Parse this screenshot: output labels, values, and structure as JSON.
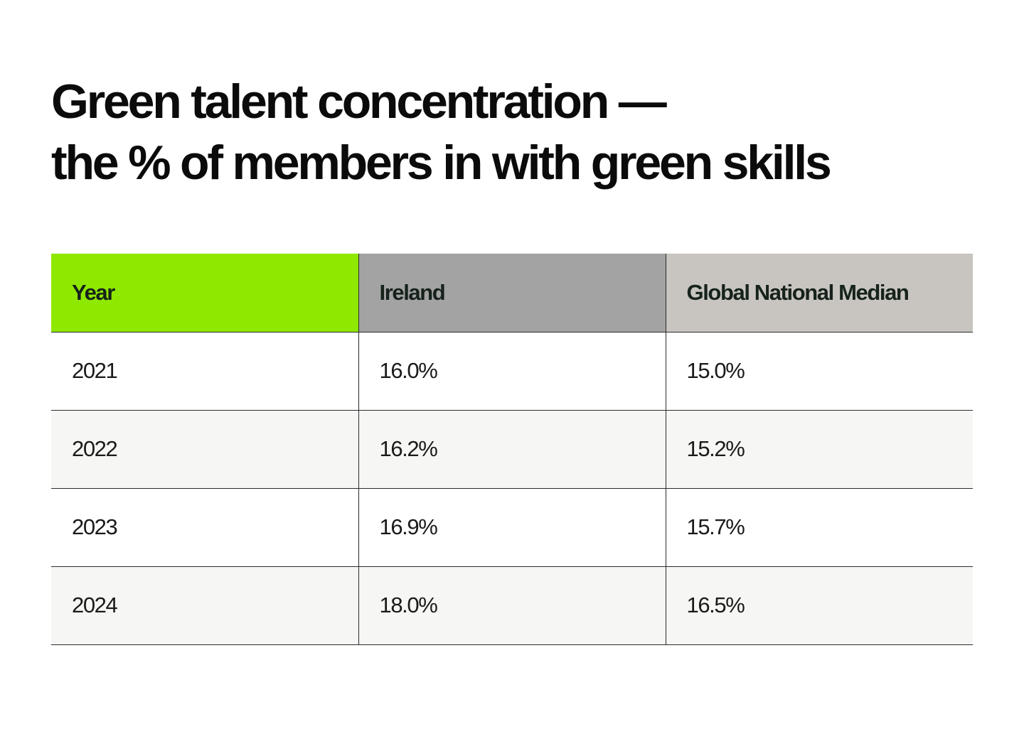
{
  "title_line1": "Green talent concentration —",
  "title_line2": "the % of members in with green skills",
  "colors": {
    "year_header": "#8fe800",
    "ireland_header": "#a3a3a3",
    "global_header": "#c8c5c1",
    "row_alt": "#f6f6f4"
  },
  "chart_data": {
    "type": "table",
    "title": "Green talent concentration — the % of members in with green skills",
    "columns": [
      "Year",
      "Ireland",
      "Global National Median"
    ],
    "rows": [
      [
        "2021",
        "16.0%",
        "15.0%"
      ],
      [
        "2022",
        "16.2%",
        "15.2%"
      ],
      [
        "2023",
        "16.9%",
        "15.7%"
      ],
      [
        "2024",
        "18.0%",
        "16.5%"
      ]
    ]
  }
}
